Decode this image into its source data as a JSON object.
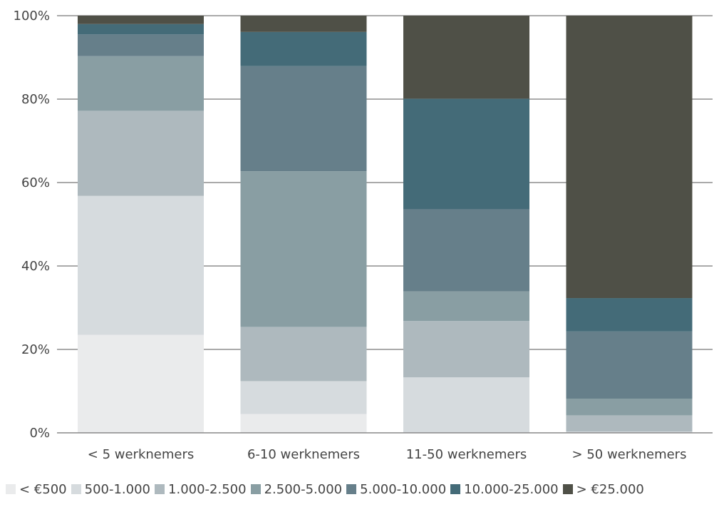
{
  "chart_data": {
    "type": "bar",
    "stacked": true,
    "categories": [
      "< 5 werknemers",
      "6-10 werknemers",
      "11-50 werknemers",
      "> 50 werknemers"
    ],
    "ylim": [
      0,
      100
    ],
    "yticks": [
      "0%",
      "20%",
      "40%",
      "60%",
      "80%",
      "100%"
    ],
    "ytick_values": [
      0,
      20,
      40,
      60,
      80,
      100
    ],
    "grid": true,
    "legend_position": "bottom",
    "series": [
      {
        "name": "< €500",
        "color": "#eaebec",
        "values": [
          23.5,
          4.5,
          0,
          0
        ]
      },
      {
        "name": "500-1.000",
        "color": "#d6dbde",
        "values": [
          33.3,
          7.9,
          13.3,
          0.3
        ]
      },
      {
        "name": "1.000-2.500",
        "color": "#aeb9be",
        "values": [
          20.4,
          13,
          13.5,
          3.9
        ]
      },
      {
        "name": "2.500-5.000",
        "color": "#899ea3",
        "values": [
          13.1,
          37.3,
          7.1,
          4
        ]
      },
      {
        "name": "5.000-10.000",
        "color": "#667f8a",
        "values": [
          5.2,
          25.2,
          19.7,
          16.1
        ]
      },
      {
        "name": "10.000-25.000",
        "color": "#446b78",
        "values": [
          2.5,
          8.2,
          26.5,
          8
        ]
      },
      {
        "name": "> €25.000",
        "color": "#4f5047",
        "values": [
          2,
          3.9,
          19.9,
          67.7
        ]
      }
    ]
  }
}
